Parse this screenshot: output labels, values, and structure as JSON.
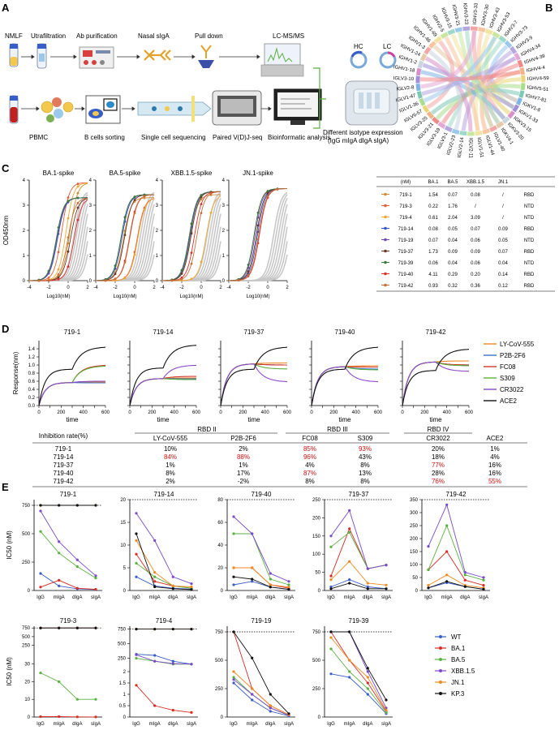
{
  "panels": {
    "A": "A",
    "B": "B",
    "C": "C",
    "D": "D",
    "E": "E"
  },
  "panelA": {
    "top_steps": [
      "NMLF",
      "Utrafiltration",
      "Ab purification",
      "Nasal sIgA",
      "Pull down",
      "LC-MS/MS"
    ],
    "bottom_steps": [
      "PBMC",
      "B cells sorting",
      "Single cell sequencing",
      "Paired V(D)J-seq",
      "Bioinformatic analysis"
    ],
    "hc": "HC",
    "lc": "LC",
    "expr_line1": "Different isotype expression",
    "expr_line2": "(IgG mIgA dIgA sIgA)"
  },
  "panelB": {
    "genes": [
      "IGHV3-33",
      "IGHV3-30",
      "IGHV3-43",
      "IGHV3-53",
      "IGHV3-7",
      "IGHV3-73",
      "IGHV3-9",
      "IGHV4-34",
      "IGHV4-39",
      "IGHV4-4",
      "IGHV4-59",
      "IGHV5-51",
      "IGHV7-81",
      "IGKV1-8",
      "IGKV1-33",
      "IGKV3-15",
      "IGKV3-20",
      "IGKV4-1",
      "IGLV1-40",
      "IGLV1-44",
      "IGLV1-51",
      "IGLV2-11",
      "IGLV2-14",
      "IGLV2-23",
      "IGLV3-1",
      "IGLV3-19",
      "IGLV3-21",
      "IGLV3-25",
      "IGLV6-57",
      "IGLV1-36",
      "IGLV1-47",
      "IGLV2-8",
      "IGLV3-10",
      "IGHV1-18",
      "IGHV1-2",
      "IGHV1-24",
      "IGHV1-3",
      "IGHV1-46",
      "IGHV1-69",
      "IGHV2-5",
      "IGHV3-15",
      "IGHV3-21",
      "IGHV3-23"
    ],
    "colors": [
      "#f4a6a6",
      "#f7c59f",
      "#f1e3a0",
      "#c8e6a0",
      "#9ed8c6",
      "#9cc8ec",
      "#b4a7e0",
      "#e3a8d6",
      "#f08a8a",
      "#f5b38a",
      "#e8d77a",
      "#a9dd8c",
      "#7cc9b5",
      "#7fb4e6",
      "#a08fd8",
      "#d98fc9",
      "#c9d6df",
      "#e6c9a8"
    ]
  },
  "panelC": {
    "ylabel": "OD450nm",
    "xlabel": "Log10(nM)",
    "charts": [
      "BA.1-spike",
      "BA.5-spike",
      "XBB.1.5-spike",
      "JN.1-spike"
    ],
    "table_headers": [
      "(nM)",
      "BA.1",
      "BA.5",
      "XBB.1.5",
      "JN.1",
      ""
    ],
    "rows": [
      {
        "name": "719-1",
        "cells": [
          "1.54",
          "0.07",
          "0.08",
          "/",
          "RBD"
        ],
        "color": "#d08a32"
      },
      {
        "name": "719-3",
        "cells": [
          "0.22",
          "1.76",
          "/",
          "/",
          "NTD"
        ],
        "color": "#e0603a"
      },
      {
        "name": "719-4",
        "cells": [
          "0.61",
          "2.04",
          "3.09",
          "/",
          "NTD"
        ],
        "color": "#f0a830"
      },
      {
        "name": "719-14",
        "cells": [
          "0.08",
          "0.05",
          "0.07",
          "0.09",
          "RBD"
        ],
        "color": "#3858c8"
      },
      {
        "name": "719-19",
        "cells": [
          "0.07",
          "0.04",
          "0.06",
          "0.05",
          "NTD"
        ],
        "color": "#7048b0"
      },
      {
        "name": "719-37",
        "cells": [
          "1.73",
          "0.09",
          "0.09",
          "0.07",
          "RBD"
        ],
        "color": "#6a3a28"
      },
      {
        "name": "719-39",
        "cells": [
          "0.06",
          "0.04",
          "0.06",
          "0.04",
          "NTD"
        ],
        "color": "#3a7a3a"
      },
      {
        "name": "719-40",
        "cells": [
          "4.11",
          "0.29",
          "0.20",
          "0.14",
          "RBD"
        ],
        "color": "#e03030"
      },
      {
        "name": "719-42",
        "cells": [
          "0.93",
          "0.32",
          "0.36",
          "0.12",
          "RBD"
        ],
        "color": "#c87038"
      }
    ]
  },
  "panelD": {
    "ylabel": "Response(nm)",
    "xlabel": "time",
    "charts": [
      "719-1",
      "719-14",
      "719-37",
      "719-40",
      "719-42"
    ],
    "legend": [
      {
        "name": "LY-CoV-555",
        "color": "#f08a24"
      },
      {
        "name": "P2B-2F6",
        "color": "#3a70c8"
      },
      {
        "name": "FC08",
        "color": "#d03a2a"
      },
      {
        "name": "S309",
        "color": "#5ab040"
      },
      {
        "name": "CR3022",
        "color": "#8a4ac8"
      },
      {
        "name": "ACE2",
        "color": "#111111"
      }
    ],
    "table": {
      "corner": "Inhibition rate(%)",
      "groups": [
        "RBD II",
        "RBD III",
        "RBD IV"
      ],
      "cols": [
        "LY-CoV-555",
        "P2B-2F6",
        "FC08",
        "S309",
        "CR3022",
        "ACE2"
      ],
      "rows": [
        {
          "name": "719-1",
          "vals": [
            "10%",
            "2%",
            "85%",
            "93%",
            "20%",
            "1%"
          ],
          "red": [
            false,
            false,
            true,
            true,
            false,
            false
          ]
        },
        {
          "name": "719-14",
          "vals": [
            "84%",
            "88%",
            "96%",
            "43%",
            "18%",
            "4%"
          ],
          "red": [
            true,
            true,
            true,
            false,
            false,
            false
          ]
        },
        {
          "name": "719-37",
          "vals": [
            "1%",
            "1%",
            "4%",
            "8%",
            "77%",
            "16%"
          ],
          "red": [
            false,
            false,
            false,
            false,
            true,
            false
          ]
        },
        {
          "name": "719-40",
          "vals": [
            "8%",
            "17%",
            "87%",
            "13%",
            "28%",
            "16%"
          ],
          "red": [
            false,
            false,
            true,
            false,
            false,
            false
          ]
        },
        {
          "name": "719-42",
          "vals": [
            "2%",
            "-2%",
            "8%",
            "8%",
            "76%",
            "55%"
          ],
          "red": [
            false,
            false,
            false,
            false,
            true,
            true
          ]
        }
      ]
    }
  },
  "panelE": {
    "ylabel": "IC50 (nM)",
    "xticks": [
      "IgG",
      "mIgA",
      "dIgA",
      "sIgA"
    ],
    "legend": [
      {
        "name": "WT",
        "color": "#3a5ec8"
      },
      {
        "name": "BA.1",
        "color": "#d82c24"
      },
      {
        "name": "BA.5",
        "color": "#5ab040"
      },
      {
        "name": "XBB.1.5",
        "color": "#7a4ac8"
      },
      {
        "name": "JN.1",
        "color": "#f08a24"
      },
      {
        "name": "KP.3",
        "color": "#111111"
      }
    ],
    "row1": [
      "719-1",
      "719-14",
      "719-40",
      "719-37",
      "719-42"
    ],
    "row2": [
      "719-3",
      "719-4",
      "719-19",
      "719-39"
    ]
  },
  "chart_data": [
    {
      "type": "line",
      "title": "719-1",
      "x": [
        "IgG",
        "mIgA",
        "dIgA",
        "sIgA"
      ],
      "series": [
        {
          "name": "WT",
          "values": [
            150,
            40,
            15,
            8
          ]
        },
        {
          "name": "BA.1",
          "values": [
            30,
            90,
            20,
            10
          ]
        },
        {
          "name": "BA.5",
          "values": [
            520,
            330,
            210,
            110
          ]
        },
        {
          "name": "XBB.1.5",
          "values": [
            700,
            430,
            270,
            130
          ]
        },
        {
          "name": "JN.1",
          "values": [
            750,
            750,
            750,
            750
          ]
        },
        {
          "name": "KP.3",
          "values": [
            750,
            750,
            750,
            750
          ]
        }
      ]
    },
    {
      "type": "line",
      "title": "719-14",
      "x": [
        "IgG",
        "mIgA",
        "dIgA",
        "sIgA"
      ],
      "series": [
        {
          "name": "WT",
          "values": [
            3,
            1,
            0.5,
            0.3
          ]
        },
        {
          "name": "BA.1",
          "values": [
            8,
            2,
            1,
            0.5
          ]
        },
        {
          "name": "BA.5",
          "values": [
            6,
            3,
            1,
            0.5
          ]
        },
        {
          "name": "XBB.1.5",
          "values": [
            17,
            11,
            3,
            1.5
          ]
        },
        {
          "name": "JN.1",
          "values": [
            11,
            4,
            1,
            0.8
          ]
        },
        {
          "name": "KP.3",
          "values": [
            12.5,
            0.8,
            0.4,
            0.2
          ]
        }
      ]
    },
    {
      "type": "line",
      "title": "719-40",
      "x": [
        "IgG",
        "mIgA",
        "dIgA",
        "sIgA"
      ],
      "series": [
        {
          "name": "WT",
          "values": [
            5,
            8,
            3,
            1
          ]
        },
        {
          "name": "BA.1",
          "values": [
            20,
            20,
            5,
            2
          ]
        },
        {
          "name": "BA.5",
          "values": [
            50,
            50,
            10,
            5
          ]
        },
        {
          "name": "XBB.1.5",
          "values": [
            65,
            50,
            15,
            8
          ]
        },
        {
          "name": "JN.1",
          "values": [
            20,
            20,
            5,
            3
          ]
        },
        {
          "name": "KP.3",
          "values": [
            12,
            10,
            3,
            1
          ]
        }
      ]
    },
    {
      "type": "line",
      "title": "719-37",
      "x": [
        "IgG",
        "mIgA",
        "dIgA",
        "sIgA"
      ],
      "series": [
        {
          "name": "WT",
          "values": [
            10,
            30,
            10,
            5
          ]
        },
        {
          "name": "BA.1",
          "values": [
            40,
            170,
            60,
            70
          ]
        },
        {
          "name": "BA.5",
          "values": [
            120,
            160,
            60,
            70
          ]
        },
        {
          "name": "XBB.1.5",
          "values": [
            150,
            220,
            60,
            70
          ]
        },
        {
          "name": "JN.1",
          "values": [
            30,
            80,
            20,
            15
          ]
        },
        {
          "name": "KP.3",
          "values": [
            5,
            20,
            5,
            5
          ]
        }
      ]
    },
    {
      "type": "line",
      "title": "719-42",
      "x": [
        "IgG",
        "mIgA",
        "dIgA",
        "sIgA"
      ],
      "series": [
        {
          "name": "WT",
          "values": [
            10,
            30,
            15,
            5
          ]
        },
        {
          "name": "BA.1",
          "values": [
            80,
            150,
            40,
            20
          ]
        },
        {
          "name": "BA.5",
          "values": [
            80,
            250,
            60,
            40
          ]
        },
        {
          "name": "XBB.1.5",
          "values": [
            170,
            330,
            70,
            50
          ]
        },
        {
          "name": "JN.1",
          "values": [
            20,
            60,
            20,
            10
          ]
        },
        {
          "name": "KP.3",
          "values": [
            10,
            35,
            15,
            5
          ]
        }
      ]
    },
    {
      "type": "line",
      "title": "719-3",
      "x": [
        "IgG",
        "mIgA",
        "dIgA",
        "sIgA"
      ],
      "series": [
        {
          "name": "WT",
          "values": [
            750,
            750,
            750,
            750
          ]
        },
        {
          "name": "BA.1",
          "values": [
            0.25,
            0.25,
            0.1,
            0.05
          ]
        },
        {
          "name": "BA.5",
          "values": [
            25,
            20,
            10,
            10
          ]
        },
        {
          "name": "XBB.1.5",
          "values": [
            750,
            750,
            750,
            750
          ]
        },
        {
          "name": "JN.1",
          "values": [
            750,
            750,
            750,
            750
          ]
        },
        {
          "name": "KP.3",
          "values": [
            750,
            750,
            750,
            750
          ]
        }
      ]
    },
    {
      "type": "line",
      "title": "719-4",
      "x": [
        "IgG",
        "mIgA",
        "dIgA",
        "sIgA"
      ],
      "series": [
        {
          "name": "WT",
          "values": [
            320,
            300,
            200,
            150
          ]
        },
        {
          "name": "BA.1",
          "values": [
            1.4,
            0.5,
            0.3,
            0.2
          ]
        },
        {
          "name": "BA.5",
          "values": [
            250,
            200,
            150,
            150
          ]
        },
        {
          "name": "XBB.1.5",
          "values": [
            310,
            200,
            160,
            150
          ]
        },
        {
          "name": "JN.1",
          "values": [
            750,
            750,
            750,
            750
          ]
        },
        {
          "name": "KP.3",
          "values": [
            750,
            750,
            750,
            750
          ]
        }
      ]
    },
    {
      "type": "line",
      "title": "719-19",
      "x": [
        "IgG",
        "mIgA",
        "dIgA",
        "sIgA"
      ],
      "series": [
        {
          "name": "WT",
          "values": [
            300,
            150,
            50,
            10
          ]
        },
        {
          "name": "BA.1",
          "values": [
            750,
            250,
            100,
            20
          ]
        },
        {
          "name": "BA.5",
          "values": [
            350,
            200,
            80,
            15
          ]
        },
        {
          "name": "XBB.1.5",
          "values": [
            330,
            200,
            80,
            15
          ]
        },
        {
          "name": "JN.1",
          "values": [
            400,
            250,
            100,
            20
          ]
        },
        {
          "name": "KP.3",
          "values": [
            750,
            520,
            200,
            30
          ]
        }
      ]
    },
    {
      "type": "line",
      "title": "719-39",
      "x": [
        "IgG",
        "mIgA",
        "dIgA",
        "sIgA"
      ],
      "series": [
        {
          "name": "WT",
          "values": [
            380,
            350,
            200,
            30
          ]
        },
        {
          "name": "BA.1",
          "values": [
            750,
            500,
            300,
            50
          ]
        },
        {
          "name": "BA.5",
          "values": [
            600,
            400,
            250,
            40
          ]
        },
        {
          "name": "XBB.1.5",
          "values": [
            750,
            750,
            400,
            80
          ]
        },
        {
          "name": "JN.1",
          "values": [
            700,
            500,
            350,
            60
          ]
        },
        {
          "name": "KP.3",
          "values": [
            750,
            750,
            430,
            150
          ]
        }
      ]
    }
  ]
}
